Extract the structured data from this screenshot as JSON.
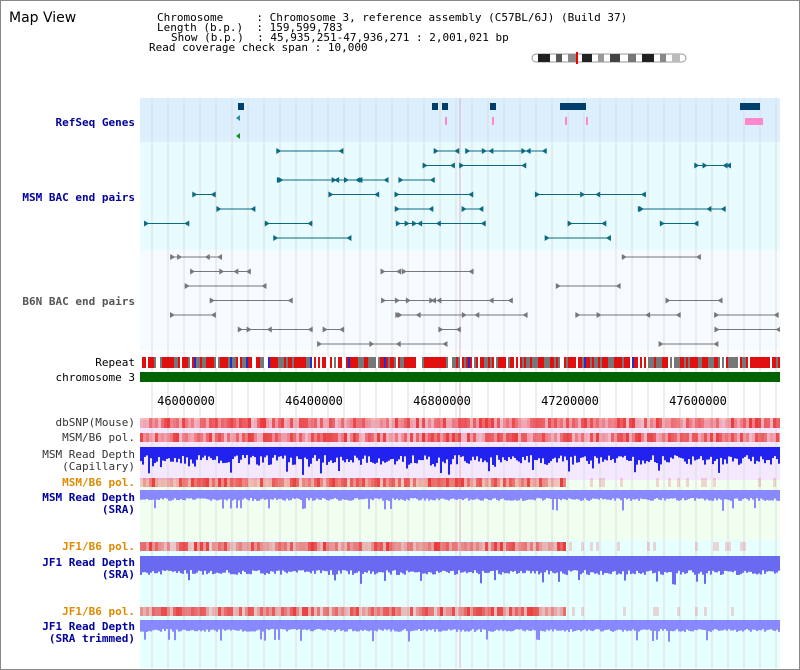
{
  "title": "Map View",
  "info": {
    "chromosome_key": "Chromosome",
    "chromosome_val": "Chromosome 3, reference assembly (C57BL/6J) (Build 37)",
    "length_key": "Length (b.p.)",
    "length_val": "159,599,783",
    "show_key": "Show (b.p.)",
    "show_val": "45,935,251-47,936,271 : 2,001,021 bp",
    "coverage_key": "Read coverage check span",
    "coverage_val": "10,000"
  },
  "tracks": {
    "refseq": "RefSeq Genes",
    "msm_bac": "MSM BAC end pairs",
    "b6n_bac": "B6N BAC end pairs",
    "repeat": "Repeat",
    "chromosome": "chromosome 3",
    "dbsnp": "dbSNP(Mouse)",
    "msm_b6_pol_1": "MSM/B6 pol.",
    "msm_read_depth_cap_1": "MSM Read Depth",
    "msm_read_depth_cap_2": "(Capillary)",
    "msm_b6_pol_2": "MSM/B6 pol.",
    "msm_read_depth_sra_1": "MSM Read Depth",
    "msm_read_depth_sra_2": "(SRA)",
    "jf1_b6_pol_1": "JF1/B6 pol.",
    "jf1_read_depth_sra_1": "JF1 Read Depth",
    "jf1_read_depth_sra_2": "(SRA)",
    "jf1_b6_pol_2": "JF1/B6 pol.",
    "jf1_read_depth_trim_1": "JF1 Read Depth",
    "jf1_read_depth_trim_2": "(SRA trimmed)"
  },
  "axis": {
    "ticks": [
      "46000000",
      "46400000",
      "46800000",
      "47200000",
      "47600000"
    ],
    "tick_values": [
      46000000,
      46400000,
      46800000,
      47200000,
      47600000
    ],
    "range": [
      45935251,
      47936271
    ]
  },
  "colors": {
    "refseq_bg": "#dcefff",
    "bac_bg": "#e8fbff",
    "gene": "#003f6b",
    "pink": "#ff88cc",
    "chromosome": "#006400",
    "msm_depth": "#2222ee",
    "sra_depth": "#8888ff",
    "pol_red": "#e83030"
  }
}
